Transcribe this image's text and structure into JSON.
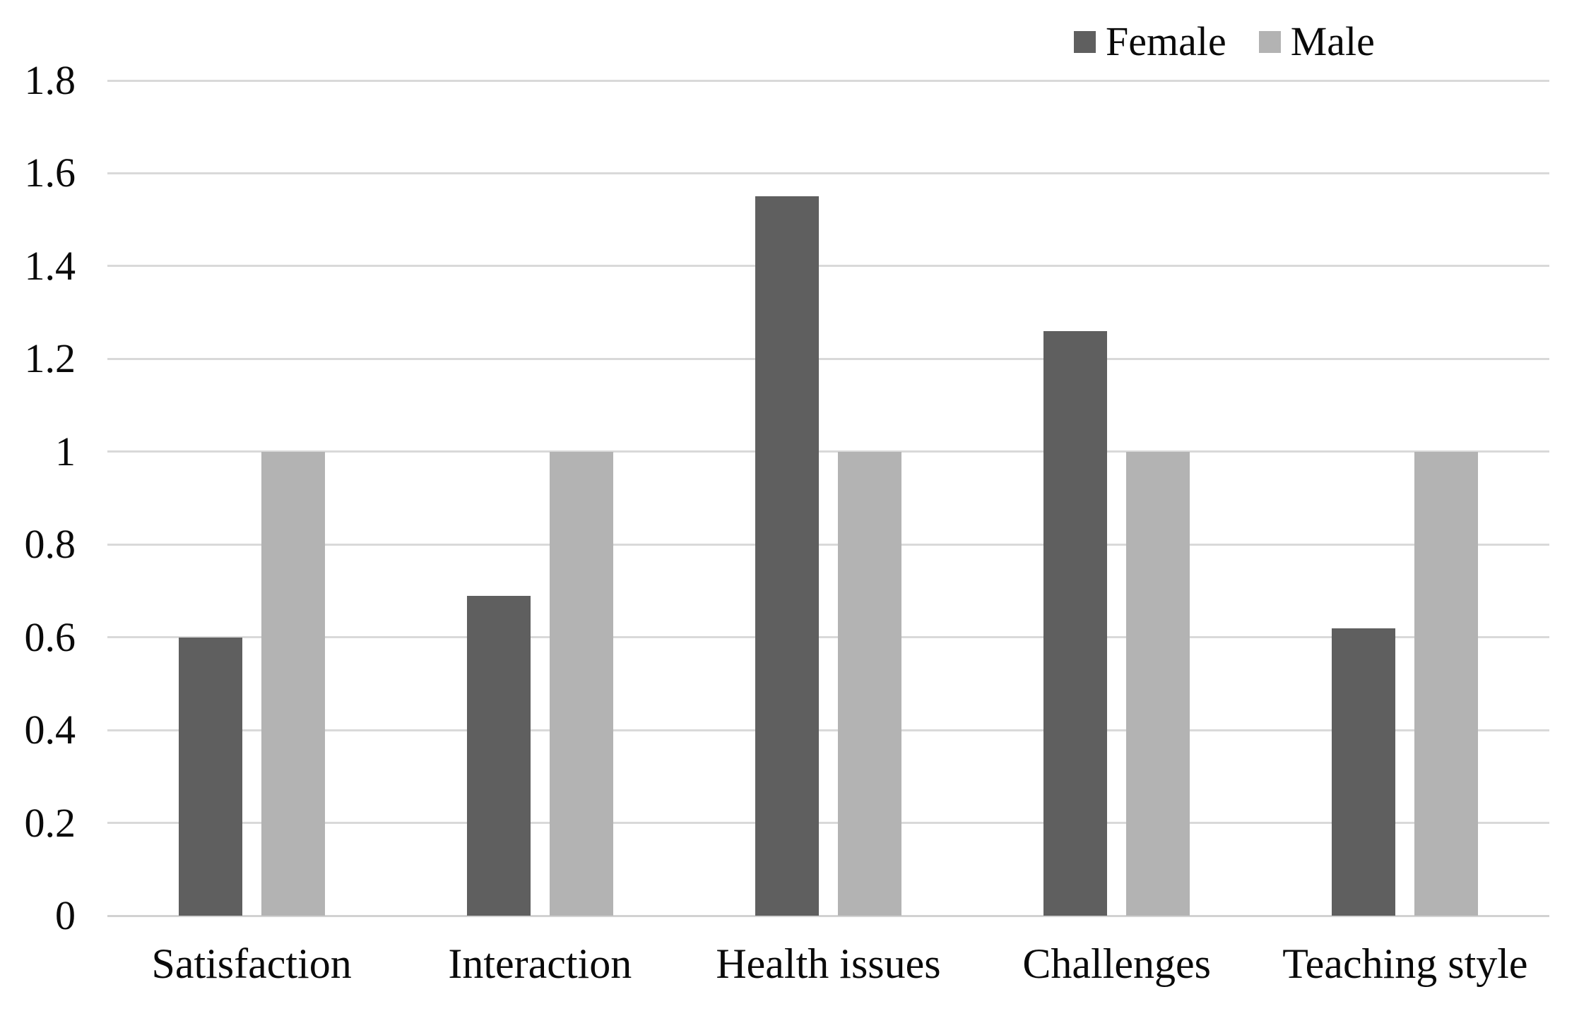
{
  "chart_data": {
    "type": "bar",
    "grouped": true,
    "title": "",
    "xlabel": "",
    "ylabel": "",
    "categories": [
      "Satisfaction",
      "Interaction",
      "Health issues",
      "Challenges",
      "Teaching style"
    ],
    "series": [
      {
        "name": "Female",
        "color": "#5f5f5f",
        "values": [
          0.6,
          0.69,
          1.55,
          1.26,
          0.62
        ]
      },
      {
        "name": "Male",
        "color": "#b3b3b3",
        "values": [
          1.0,
          1.0,
          1.0,
          1.0,
          1.0
        ]
      }
    ],
    "ylim": [
      0,
      1.8
    ],
    "y_ticks": [
      "0",
      "0.2",
      "0.4",
      "0.6",
      "0.8",
      "1",
      "1.2",
      "1.4",
      "1.6",
      "1.8"
    ],
    "grid": true,
    "gridline_color": "#d9d9d9",
    "legend_position": "top-right",
    "background_color": "#ffffff",
    "text_color": "#0a0a0a"
  }
}
